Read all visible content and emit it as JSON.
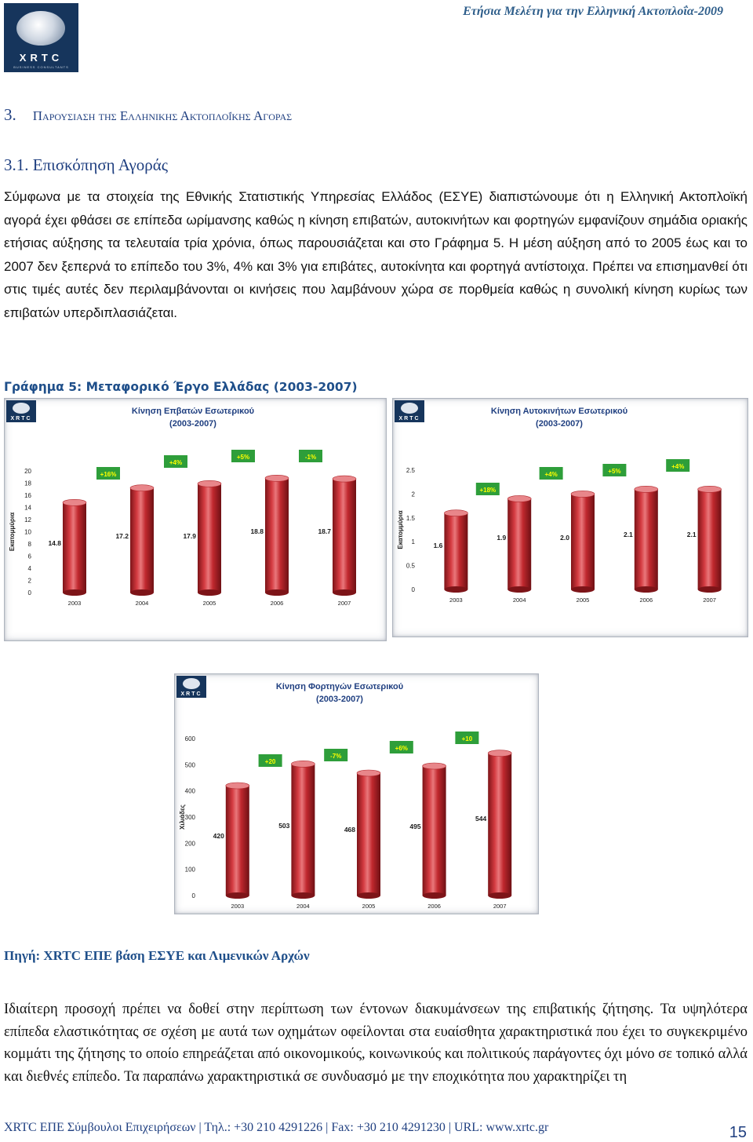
{
  "header": {
    "running_title": "Ετήσια Μελέτη για την Ελληνική Ακτοπλοΐα-2009",
    "logo": {
      "text": "XRTC",
      "subtext": "BUSINESS CONSULTANTS"
    }
  },
  "section": {
    "number": "3.",
    "title": "Παρουσιαση της Ελληνικης Ακτοπλοΐκης Αγορας",
    "subsection": "3.1.  Επισκόπηση Αγοράς"
  },
  "paragraph1": "Σύμφωνα με τα στοιχεία της Εθνικής Στατιστικής Υπηρεσίας Ελλάδος (ΕΣΥΕ) διαπιστώνουμε ότι η Ελληνική Ακτοπλοϊκή αγορά έχει φθάσει σε επίπεδα ωρίμανσης καθώς η κίνηση επιβατών, αυτοκινήτων και φορτηγών εμφανίζουν σημάδια οριακής ετήσιας αύξησης τα τελευταία τρία χρόνια, όπως παρουσιάζεται και στο Γράφημα 5. Η μέση αύξηση από το 2005 έως και το 2007 δεν ξεπερνά το επίπεδο του 3%, 4% και 3% για επιβάτες, αυτοκίνητα και φορτηγά αντίστοιχα. Πρέπει να επισημανθεί ότι στις τιμές αυτές δεν περιλαμβάνονται οι κινήσεις που λαμβάνουν χώρα σε πορθμεία καθώς η συνολική κίνηση κυρίως των επιβατών υπερδιπλασιάζεται.",
  "figure_caption": "Γράφημα 5: Μεταφορικό Έργο Ελλάδας (2003-2007)",
  "chart_data": [
    {
      "type": "bar",
      "title": "Κίνηση Επβατών Εσωτερικού",
      "subtitle": "(2003-2007)",
      "ylabel": "Εκατομμύρια",
      "categories": [
        "2003",
        "2004",
        "2005",
        "2006",
        "2007"
      ],
      "values": [
        14.8,
        17.2,
        17.9,
        18.8,
        18.7
      ],
      "value_labels": [
        "14.8",
        "17.2",
        "17.9",
        "18.8",
        "18.7"
      ],
      "growth_labels": [
        "+16%",
        "+4%",
        "+5%",
        "-1%"
      ],
      "yticks": [
        "0",
        "2",
        "4",
        "6",
        "8",
        "10",
        "12",
        "14",
        "16",
        "18",
        "20"
      ],
      "ylim": [
        0,
        20
      ],
      "logo_text": "XRTC",
      "colors": {
        "bar": "#c0282e",
        "bar_top": "#e8868a",
        "growth_box": "#2e9e3a",
        "growth_text": "#ffff00"
      }
    },
    {
      "type": "bar",
      "title": "Κίνηση Αυτοκινήτων Εσωτερικού",
      "subtitle": "(2003-2007)",
      "ylabel": "Εκατομμύρια",
      "categories": [
        "2003",
        "2004",
        "2005",
        "2006",
        "2007"
      ],
      "values": [
        1.6,
        1.9,
        2.0,
        2.1,
        2.1
      ],
      "value_labels": [
        "1.6",
        "1.9",
        "2.0",
        "2.1",
        "2.1"
      ],
      "growth_labels": [
        "+18%",
        "+4%",
        "+5%",
        "+4%"
      ],
      "yticks": [
        "0",
        "0.5",
        "1",
        "1.5",
        "2",
        "2.5"
      ],
      "ylim": [
        0,
        2.5
      ],
      "logo_text": "XRTC",
      "colors": {
        "bar": "#c0282e",
        "bar_top": "#e8868a",
        "growth_box": "#2e9e3a",
        "growth_text": "#ffff00"
      }
    },
    {
      "type": "bar",
      "title": "Κίνηση Φορτηγών Εσωτερικού",
      "subtitle": "(2003-2007)",
      "ylabel": "Χιλιάδες",
      "categories": [
        "2003",
        "2004",
        "2005",
        "2006",
        "2007"
      ],
      "values": [
        420,
        503,
        468,
        495,
        544
      ],
      "value_labels": [
        "420",
        "503",
        "468",
        "495",
        "544"
      ],
      "growth_labels": [
        "+20",
        "-7%",
        "+6%",
        "+10"
      ],
      "yticks": [
        "0",
        "100",
        "200",
        "300",
        "400",
        "500",
        "600"
      ],
      "ylim": [
        0,
        600
      ],
      "logo_text": "XRTC",
      "colors": {
        "bar": "#c0282e",
        "bar_top": "#e8868a",
        "growth_box": "#2e9e3a",
        "growth_text": "#ffff00"
      }
    }
  ],
  "source_note": "Πηγή: XRTC ΕΠΕ βάση ΕΣΥΕ και Λιμενικών Αρχών",
  "paragraph2": "Ιδιαίτερη προσοχή πρέπει να δοθεί στην περίπτωση των έντονων διακυμάνσεων της επιβατικής ζήτησης. Τα υψηλότερα επίπεδα ελαστικότητας σε σχέση με αυτά των οχημάτων οφείλονται στα ευαίσθητα χαρακτηριστικά που έχει το συγκεκριμένο κομμάτι της ζήτησης το οποίο επηρεάζεται από οικονομικούς, κοινωνικούς και πολιτικούς παράγοντες όχι μόνο σε τοπικό αλλά και διεθνές επίπεδο. Τα παραπάνω χαρακτηριστικά σε συνδυασμό με την εποχικότητα που χαρακτηρίζει τη",
  "footer": {
    "text": "XRTC ΕΠΕ Σύμβουλοι Επιχειρήσεων | Τηλ.: +30 210 4291226 | Fax: +30 210 4291230 | URL: www.xrtc.gr",
    "page_number": "15"
  }
}
